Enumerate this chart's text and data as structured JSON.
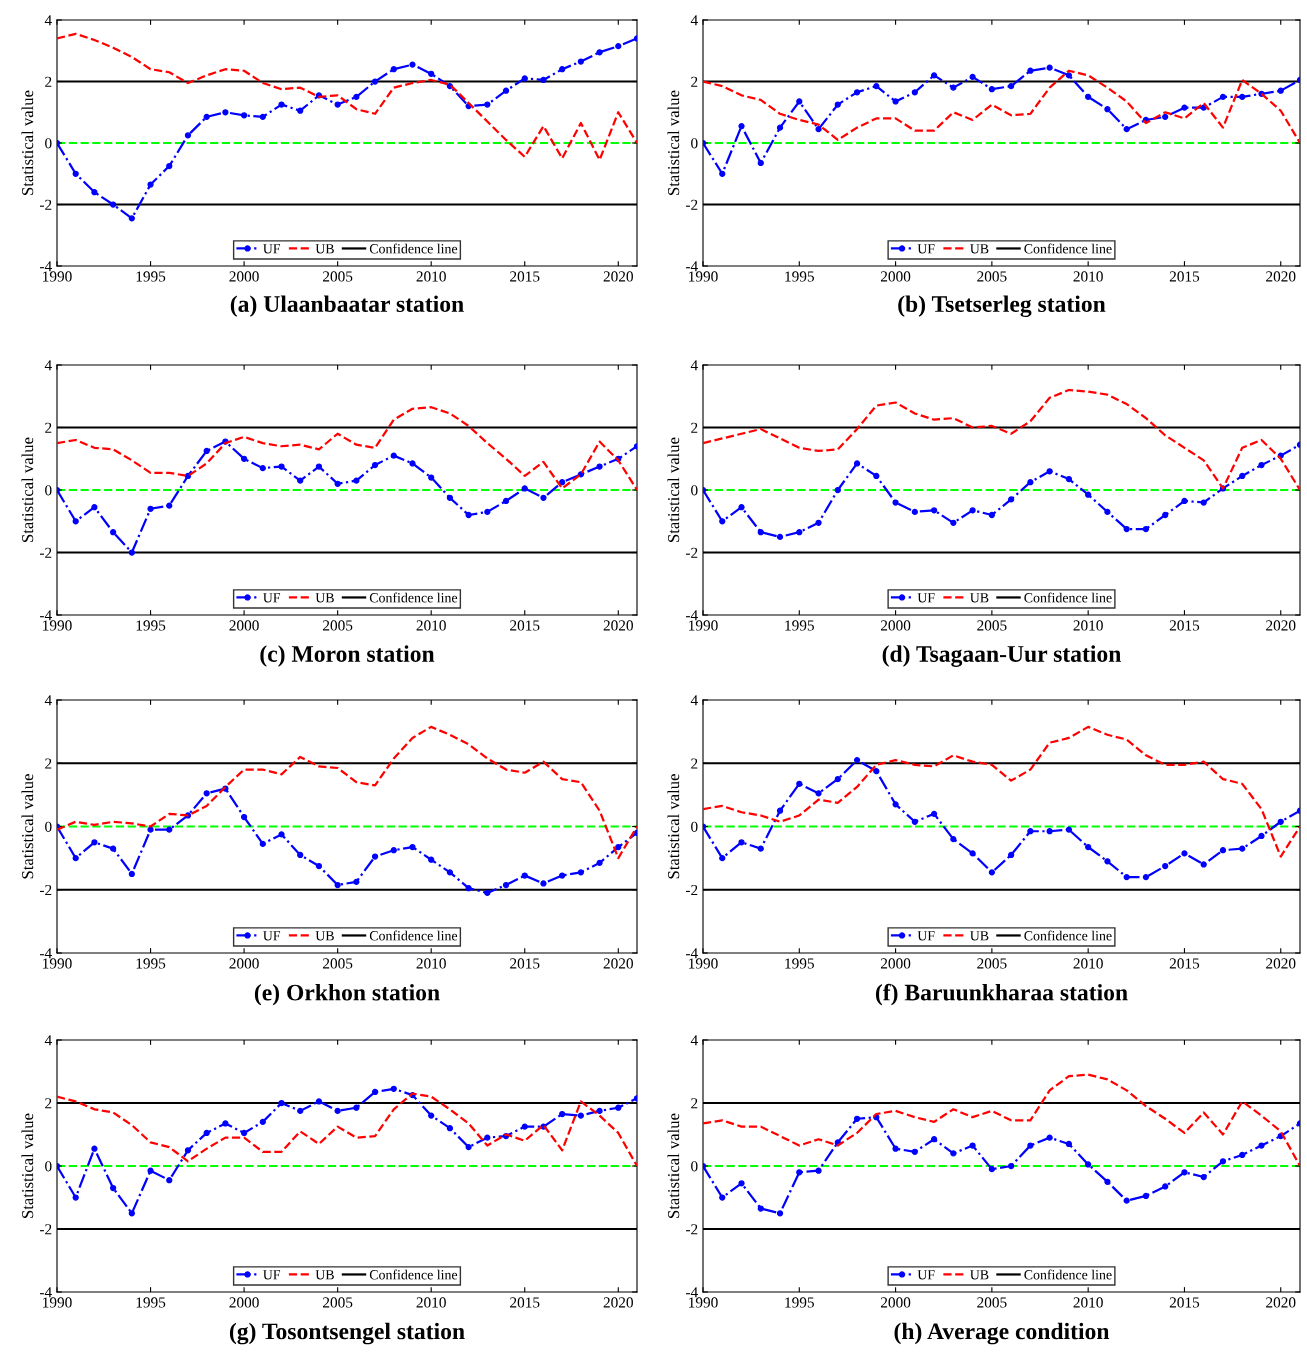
{
  "chart_data": [
    {
      "type": "line",
      "title": "(a) Ulaanbaatar station",
      "ylabel": "Statistical value",
      "x": [
        1990,
        1991,
        1992,
        1993,
        1994,
        1995,
        1996,
        1997,
        1998,
        1999,
        2000,
        2001,
        2002,
        2003,
        2004,
        2005,
        2006,
        2007,
        2008,
        2009,
        2010,
        2011,
        2012,
        2013,
        2014,
        2015,
        2016,
        2017,
        2018,
        2019,
        2020,
        2021
      ],
      "xlim": [
        1990,
        2021
      ],
      "xticks": [
        1990,
        1995,
        2000,
        2005,
        2010,
        2015,
        2020
      ],
      "ylim": [
        -4,
        4
      ],
      "yticks": [
        -4,
        -2,
        0,
        2,
        4
      ],
      "grid": false,
      "legend": "bottom",
      "series": [
        {
          "name": "UF",
          "color": "#0000ff",
          "marker": "circle",
          "line_style": "dashed",
          "values": [
            0,
            -1.0,
            -1.6,
            -2.0,
            -2.45,
            -1.35,
            -0.75,
            0.25,
            0.85,
            1.0,
            0.9,
            0.85,
            1.25,
            1.05,
            1.55,
            1.25,
            1.5,
            2.0,
            2.4,
            2.55,
            2.25,
            1.85,
            1.2,
            1.25,
            1.7,
            2.1,
            2.05,
            2.4,
            2.65,
            2.95,
            3.15,
            3.4
          ]
        },
        {
          "name": "UB",
          "color": "#ff0000",
          "marker": "none",
          "line_style": "dashed",
          "values": [
            3.4,
            3.55,
            3.35,
            3.1,
            2.8,
            2.4,
            2.3,
            1.95,
            2.2,
            2.4,
            2.35,
            1.95,
            1.75,
            1.8,
            1.5,
            1.55,
            1.1,
            0.95,
            1.8,
            1.95,
            2.05,
            1.9,
            1.3,
            0.7,
            0.1,
            -0.45,
            0.55,
            -0.5,
            0.65,
            -0.55,
            1.0,
            0.0
          ]
        }
      ],
      "ref_lines": [
        {
          "axis": "y",
          "value": 2,
          "label": "Confidence line",
          "color": "#000000",
          "line_style": "solid"
        },
        {
          "axis": "y",
          "value": -2,
          "color": "#000000",
          "line_style": "solid"
        },
        {
          "axis": "y",
          "value": 0,
          "color": "#00ff00",
          "line_style": "dashed"
        }
      ]
    },
    {
      "type": "line",
      "title": "(b) Tsetserleg station",
      "ylabel": "Statistical value",
      "x": [
        1990,
        1991,
        1992,
        1993,
        1994,
        1995,
        1996,
        1997,
        1998,
        1999,
        2000,
        2001,
        2002,
        2003,
        2004,
        2005,
        2006,
        2007,
        2008,
        2009,
        2010,
        2011,
        2012,
        2013,
        2014,
        2015,
        2016,
        2017,
        2018,
        2019,
        2020,
        2021
      ],
      "xlim": [
        1990,
        2021
      ],
      "xticks": [
        1990,
        1995,
        2000,
        2005,
        2010,
        2015,
        2020
      ],
      "ylim": [
        -4,
        4
      ],
      "yticks": [
        -4,
        -2,
        0,
        2,
        4
      ],
      "grid": false,
      "legend": "bottom",
      "series": [
        {
          "name": "UF",
          "color": "#0000ff",
          "marker": "circle",
          "line_style": "dashed",
          "values": [
            0,
            -1.0,
            0.55,
            -0.65,
            0.5,
            1.35,
            0.45,
            1.25,
            1.65,
            1.85,
            1.35,
            1.65,
            2.2,
            1.8,
            2.15,
            1.75,
            1.85,
            2.35,
            2.45,
            2.2,
            1.5,
            1.1,
            0.45,
            0.75,
            0.85,
            1.15,
            1.15,
            1.5,
            1.5,
            1.6,
            1.7,
            2.05
          ]
        },
        {
          "name": "UB",
          "color": "#ff0000",
          "marker": "none",
          "line_style": "dashed",
          "values": [
            2.0,
            1.85,
            1.55,
            1.4,
            0.95,
            0.75,
            0.6,
            0.1,
            0.5,
            0.8,
            0.8,
            0.4,
            0.4,
            1.0,
            0.75,
            1.25,
            0.9,
            0.95,
            1.8,
            2.35,
            2.2,
            1.8,
            1.35,
            0.65,
            1.0,
            0.8,
            1.3,
            0.5,
            2.05,
            1.6,
            1.05,
            0.0
          ]
        }
      ],
      "ref_lines": [
        {
          "axis": "y",
          "value": 2,
          "label": "Confidence line",
          "color": "#000000",
          "line_style": "solid"
        },
        {
          "axis": "y",
          "value": -2,
          "color": "#000000",
          "line_style": "solid"
        },
        {
          "axis": "y",
          "value": 0,
          "color": "#00ff00",
          "line_style": "dashed"
        }
      ]
    },
    {
      "type": "line",
      "title": "(c) Moron station",
      "ylabel": "Statistical value",
      "x": [
        1990,
        1991,
        1992,
        1993,
        1994,
        1995,
        1996,
        1997,
        1998,
        1999,
        2000,
        2001,
        2002,
        2003,
        2004,
        2005,
        2006,
        2007,
        2008,
        2009,
        2010,
        2011,
        2012,
        2013,
        2014,
        2015,
        2016,
        2017,
        2018,
        2019,
        2020,
        2021
      ],
      "xlim": [
        1990,
        2021
      ],
      "xticks": [
        1990,
        1995,
        2000,
        2005,
        2010,
        2015,
        2020
      ],
      "ylim": [
        -4,
        4
      ],
      "yticks": [
        -4,
        -2,
        0,
        2,
        4
      ],
      "grid": false,
      "legend": "bottom",
      "series": [
        {
          "name": "UF",
          "color": "#0000ff",
          "marker": "circle",
          "line_style": "dashed",
          "values": [
            0,
            -1.0,
            -0.55,
            -1.35,
            -2.0,
            -0.6,
            -0.5,
            0.45,
            1.25,
            1.55,
            1.0,
            0.7,
            0.75,
            0.3,
            0.75,
            0.2,
            0.3,
            0.8,
            1.1,
            0.85,
            0.4,
            -0.25,
            -0.8,
            -0.7,
            -0.35,
            0.05,
            -0.25,
            0.25,
            0.5,
            0.75,
            1.0,
            1.4
          ]
        },
        {
          "name": "UB",
          "color": "#ff0000",
          "marker": "none",
          "line_style": "dashed",
          "values": [
            1.5,
            1.6,
            1.35,
            1.3,
            0.95,
            0.55,
            0.55,
            0.45,
            0.85,
            1.5,
            1.7,
            1.5,
            1.4,
            1.45,
            1.3,
            1.8,
            1.45,
            1.35,
            2.25,
            2.6,
            2.65,
            2.45,
            2.05,
            1.5,
            1.0,
            0.45,
            0.9,
            0.05,
            0.5,
            1.55,
            0.95,
            0.0
          ]
        }
      ],
      "ref_lines": [
        {
          "axis": "y",
          "value": 2,
          "label": "Confidence line",
          "color": "#000000",
          "line_style": "solid"
        },
        {
          "axis": "y",
          "value": -2,
          "color": "#000000",
          "line_style": "solid"
        },
        {
          "axis": "y",
          "value": 0,
          "color": "#00ff00",
          "line_style": "dashed"
        }
      ]
    },
    {
      "type": "line",
      "title": "(d) Tsagaan-Uur station",
      "ylabel": "Statistical value",
      "x": [
        1990,
        1991,
        1992,
        1993,
        1994,
        1995,
        1996,
        1997,
        1998,
        1999,
        2000,
        2001,
        2002,
        2003,
        2004,
        2005,
        2006,
        2007,
        2008,
        2009,
        2010,
        2011,
        2012,
        2013,
        2014,
        2015,
        2016,
        2017,
        2018,
        2019,
        2020,
        2021
      ],
      "xlim": [
        1990,
        2021
      ],
      "xticks": [
        1990,
        1995,
        2000,
        2005,
        2010,
        2015,
        2020
      ],
      "ylim": [
        -4,
        4
      ],
      "yticks": [
        -4,
        -2,
        0,
        2,
        4
      ],
      "grid": false,
      "legend": "bottom",
      "series": [
        {
          "name": "UF",
          "color": "#0000ff",
          "marker": "circle",
          "line_style": "dashed",
          "values": [
            0,
            -1.0,
            -0.55,
            -1.35,
            -1.5,
            -1.35,
            -1.05,
            0.0,
            0.85,
            0.45,
            -0.4,
            -0.7,
            -0.65,
            -1.05,
            -0.65,
            -0.8,
            -0.3,
            0.25,
            0.6,
            0.35,
            -0.15,
            -0.7,
            -1.25,
            -1.25,
            -0.8,
            -0.35,
            -0.4,
            0.05,
            0.45,
            0.8,
            1.1,
            1.45
          ]
        },
        {
          "name": "UB",
          "color": "#ff0000",
          "marker": "none",
          "line_style": "dashed",
          "values": [
            1.5,
            1.65,
            1.8,
            1.95,
            1.65,
            1.35,
            1.25,
            1.3,
            1.95,
            2.7,
            2.8,
            2.45,
            2.25,
            2.3,
            2.0,
            2.05,
            1.8,
            2.2,
            2.95,
            3.2,
            3.15,
            3.05,
            2.75,
            2.3,
            1.75,
            1.35,
            0.95,
            0.05,
            1.35,
            1.6,
            1.0,
            0.0
          ]
        }
      ],
      "ref_lines": [
        {
          "axis": "y",
          "value": 2,
          "label": "Confidence line",
          "color": "#000000",
          "line_style": "solid"
        },
        {
          "axis": "y",
          "value": -2,
          "color": "#000000",
          "line_style": "solid"
        },
        {
          "axis": "y",
          "value": 0,
          "color": "#00ff00",
          "line_style": "dashed"
        }
      ]
    },
    {
      "type": "line",
      "title": "(e) Orkhon station",
      "ylabel": "Statistical value",
      "x": [
        1990,
        1991,
        1992,
        1993,
        1994,
        1995,
        1996,
        1997,
        1998,
        1999,
        2000,
        2001,
        2002,
        2003,
        2004,
        2005,
        2006,
        2007,
        2008,
        2009,
        2010,
        2011,
        2012,
        2013,
        2014,
        2015,
        2016,
        2017,
        2018,
        2019,
        2020,
        2021
      ],
      "xlim": [
        1990,
        2021
      ],
      "xticks": [
        1990,
        1995,
        2000,
        2005,
        2010,
        2015,
        2020
      ],
      "ylim": [
        -4,
        4
      ],
      "yticks": [
        -4,
        -2,
        0,
        2,
        4
      ],
      "grid": false,
      "legend": "bottom",
      "series": [
        {
          "name": "UF",
          "color": "#0000ff",
          "marker": "circle",
          "line_style": "dashed",
          "values": [
            0,
            -1.0,
            -0.5,
            -0.7,
            -1.5,
            -0.1,
            -0.1,
            0.35,
            1.05,
            1.2,
            0.3,
            -0.55,
            -0.25,
            -0.9,
            -1.25,
            -1.85,
            -1.75,
            -0.95,
            -0.75,
            -0.65,
            -1.05,
            -1.45,
            -1.95,
            -2.1,
            -1.85,
            -1.55,
            -1.8,
            -1.55,
            -1.45,
            -1.15,
            -0.65,
            -0.2
          ]
        },
        {
          "name": "UB",
          "color": "#ff0000",
          "marker": "none",
          "line_style": "dashed",
          "values": [
            -0.1,
            0.15,
            0.05,
            0.15,
            0.1,
            0.0,
            0.4,
            0.35,
            0.65,
            1.25,
            1.8,
            1.8,
            1.65,
            2.2,
            1.9,
            1.85,
            1.4,
            1.3,
            2.15,
            2.8,
            3.15,
            2.9,
            2.6,
            2.15,
            1.8,
            1.7,
            2.05,
            1.5,
            1.4,
            0.5,
            -1.0,
            0.0
          ]
        }
      ],
      "ref_lines": [
        {
          "axis": "y",
          "value": 2,
          "label": "Confidence line",
          "color": "#000000",
          "line_style": "solid"
        },
        {
          "axis": "y",
          "value": -2,
          "color": "#000000",
          "line_style": "solid"
        },
        {
          "axis": "y",
          "value": 0,
          "color": "#00ff00",
          "line_style": "dashed"
        }
      ]
    },
    {
      "type": "line",
      "title": "(f) Baruunkharaa station",
      "ylabel": "Statistical value",
      "x": [
        1990,
        1991,
        1992,
        1993,
        1994,
        1995,
        1996,
        1997,
        1998,
        1999,
        2000,
        2001,
        2002,
        2003,
        2004,
        2005,
        2006,
        2007,
        2008,
        2009,
        2010,
        2011,
        2012,
        2013,
        2014,
        2015,
        2016,
        2017,
        2018,
        2019,
        2020,
        2021
      ],
      "xlim": [
        1990,
        2021
      ],
      "xticks": [
        1990,
        1995,
        2000,
        2005,
        2010,
        2015,
        2020
      ],
      "ylim": [
        -4,
        4
      ],
      "yticks": [
        -4,
        -2,
        0,
        2,
        4
      ],
      "grid": false,
      "legend": "bottom",
      "series": [
        {
          "name": "UF",
          "color": "#0000ff",
          "marker": "circle",
          "line_style": "dashed",
          "values": [
            0,
            -1.0,
            -0.5,
            -0.7,
            0.5,
            1.35,
            1.05,
            1.5,
            2.1,
            1.75,
            0.7,
            0.15,
            0.4,
            -0.4,
            -0.85,
            -1.45,
            -0.9,
            -0.15,
            -0.15,
            -0.1,
            -0.65,
            -1.1,
            -1.6,
            -1.6,
            -1.25,
            -0.85,
            -1.2,
            -0.75,
            -0.7,
            -0.3,
            0.15,
            0.5
          ]
        },
        {
          "name": "UB",
          "color": "#ff0000",
          "marker": "none",
          "line_style": "dashed",
          "values": [
            0.55,
            0.65,
            0.45,
            0.35,
            0.15,
            0.35,
            0.85,
            0.75,
            1.25,
            1.95,
            2.1,
            1.95,
            1.9,
            2.25,
            2.05,
            1.95,
            1.45,
            1.8,
            2.65,
            2.8,
            3.15,
            2.9,
            2.75,
            2.25,
            1.95,
            1.95,
            2.05,
            1.5,
            1.35,
            0.55,
            -0.95,
            0.0
          ]
        }
      ],
      "ref_lines": [
        {
          "axis": "y",
          "value": 2,
          "label": "Confidence line",
          "color": "#000000",
          "line_style": "solid"
        },
        {
          "axis": "y",
          "value": -2,
          "color": "#000000",
          "line_style": "solid"
        },
        {
          "axis": "y",
          "value": 0,
          "color": "#00ff00",
          "line_style": "dashed"
        }
      ]
    },
    {
      "type": "line",
      "title": "(g) Tosontsengel station",
      "ylabel": "Statistical value",
      "x": [
        1990,
        1991,
        1992,
        1993,
        1994,
        1995,
        1996,
        1997,
        1998,
        1999,
        2000,
        2001,
        2002,
        2003,
        2004,
        2005,
        2006,
        2007,
        2008,
        2009,
        2010,
        2011,
        2012,
        2013,
        2014,
        2015,
        2016,
        2017,
        2018,
        2019,
        2020,
        2021
      ],
      "xlim": [
        1990,
        2021
      ],
      "xticks": [
        1990,
        1995,
        2000,
        2005,
        2010,
        2015,
        2020
      ],
      "ylim": [
        -4,
        4
      ],
      "yticks": [
        -4,
        -2,
        0,
        2,
        4
      ],
      "grid": false,
      "legend": "bottom",
      "series": [
        {
          "name": "UF",
          "color": "#0000ff",
          "marker": "circle",
          "line_style": "dashed",
          "values": [
            0,
            -1.0,
            0.55,
            -0.7,
            -1.5,
            -0.15,
            -0.45,
            0.5,
            1.05,
            1.35,
            1.05,
            1.4,
            2.0,
            1.75,
            2.05,
            1.75,
            1.85,
            2.35,
            2.45,
            2.25,
            1.6,
            1.2,
            0.6,
            0.9,
            0.95,
            1.25,
            1.25,
            1.65,
            1.6,
            1.75,
            1.85,
            2.15
          ]
        },
        {
          "name": "UB",
          "color": "#ff0000",
          "marker": "none",
          "line_style": "dashed",
          "values": [
            2.2,
            2.05,
            1.8,
            1.7,
            1.3,
            0.75,
            0.6,
            0.15,
            0.55,
            0.9,
            0.9,
            0.45,
            0.45,
            1.1,
            0.7,
            1.25,
            0.9,
            0.95,
            1.8,
            2.3,
            2.2,
            1.8,
            1.35,
            0.65,
            1.0,
            0.8,
            1.3,
            0.5,
            2.05,
            1.6,
            1.05,
            0.0
          ]
        }
      ],
      "ref_lines": [
        {
          "axis": "y",
          "value": 2,
          "label": "Confidence line",
          "color": "#000000",
          "line_style": "solid"
        },
        {
          "axis": "y",
          "value": -2,
          "color": "#000000",
          "line_style": "solid"
        },
        {
          "axis": "y",
          "value": 0,
          "color": "#00ff00",
          "line_style": "dashed"
        }
      ]
    },
    {
      "type": "line",
      "title": "(h) Average condition",
      "ylabel": "Statistical value",
      "x": [
        1990,
        1991,
        1992,
        1993,
        1994,
        1995,
        1996,
        1997,
        1998,
        1999,
        2000,
        2001,
        2002,
        2003,
        2004,
        2005,
        2006,
        2007,
        2008,
        2009,
        2010,
        2011,
        2012,
        2013,
        2014,
        2015,
        2016,
        2017,
        2018,
        2019,
        2020,
        2021
      ],
      "xlim": [
        1990,
        2021
      ],
      "xticks": [
        1990,
        1995,
        2000,
        2005,
        2010,
        2015,
        2020
      ],
      "ylim": [
        -4,
        4
      ],
      "yticks": [
        -4,
        -2,
        0,
        2,
        4
      ],
      "grid": false,
      "legend": "bottom",
      "series": [
        {
          "name": "UF",
          "color": "#0000ff",
          "marker": "circle",
          "line_style": "dashed",
          "values": [
            0,
            -1.0,
            -0.55,
            -1.35,
            -1.5,
            -0.2,
            -0.15,
            0.75,
            1.5,
            1.55,
            0.55,
            0.45,
            0.85,
            0.4,
            0.65,
            -0.1,
            0.0,
            0.65,
            0.9,
            0.7,
            0.05,
            -0.5,
            -1.1,
            -0.95,
            -0.65,
            -0.2,
            -0.35,
            0.15,
            0.35,
            0.65,
            0.95,
            1.35
          ]
        },
        {
          "name": "UB",
          "color": "#ff0000",
          "marker": "none",
          "line_style": "dashed",
          "values": [
            1.35,
            1.45,
            1.25,
            1.25,
            0.95,
            0.65,
            0.85,
            0.65,
            1.05,
            1.65,
            1.75,
            1.55,
            1.4,
            1.8,
            1.55,
            1.75,
            1.45,
            1.45,
            2.4,
            2.85,
            2.9,
            2.75,
            2.4,
            1.9,
            1.5,
            1.05,
            1.7,
            1.0,
            2.05,
            1.6,
            1.1,
            0.0
          ]
        }
      ],
      "ref_lines": [
        {
          "axis": "y",
          "value": 2,
          "label": "Confidence line",
          "color": "#000000",
          "line_style": "solid"
        },
        {
          "axis": "y",
          "value": -2,
          "color": "#000000",
          "line_style": "solid"
        },
        {
          "axis": "y",
          "value": 0,
          "color": "#00ff00",
          "line_style": "dashed"
        }
      ]
    }
  ]
}
